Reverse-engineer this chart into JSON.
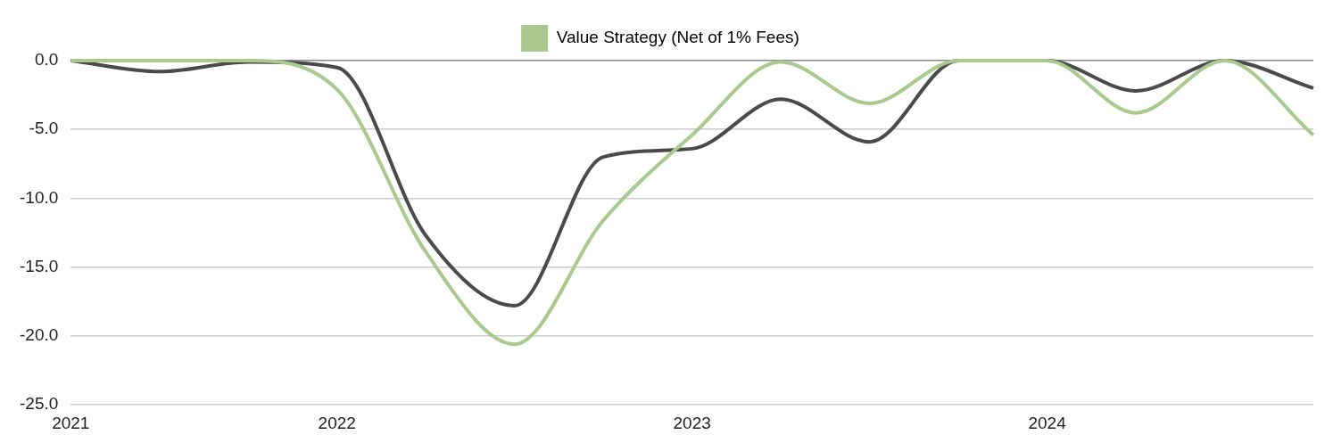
{
  "chart_data": {
    "type": "line",
    "categories": [
      "2021",
      null,
      null,
      "2022",
      null,
      null,
      null,
      "2023",
      null,
      null,
      null,
      "2024",
      null,
      null,
      null
    ],
    "series": [
      {
        "name": "Value Strategy (Net of 1% Fees)",
        "color": "#a9c98f",
        "values": [
          0,
          0,
          0,
          -2.1,
          -13.9,
          -20.6,
          -11.6,
          -5.4,
          -0.1,
          -3.1,
          0,
          0,
          -3.8,
          0,
          -5.4
        ]
      },
      {
        "color": "#4a4a4a",
        "values": [
          0,
          -0.8,
          -0.1,
          -0.5,
          -12.7,
          -17.8,
          -7.0,
          -6.4,
          -2.8,
          -5.9,
          0,
          0,
          -2.2,
          0,
          -2.0
        ]
      }
    ],
    "ylim": [
      -25,
      0
    ],
    "yticks": [
      {
        "value": -25,
        "label": "-25.0"
      },
      {
        "value": -20,
        "label": "-20.0"
      },
      {
        "value": -15,
        "label": "-15.0"
      },
      {
        "value": -10,
        "label": "-10.0"
      },
      {
        "value": -5,
        "label": "-5.0"
      },
      {
        "value": 0,
        "label": "0.0"
      }
    ],
    "grid": "y",
    "legend": "top",
    "marker": "none",
    "line_style": "solid"
  }
}
